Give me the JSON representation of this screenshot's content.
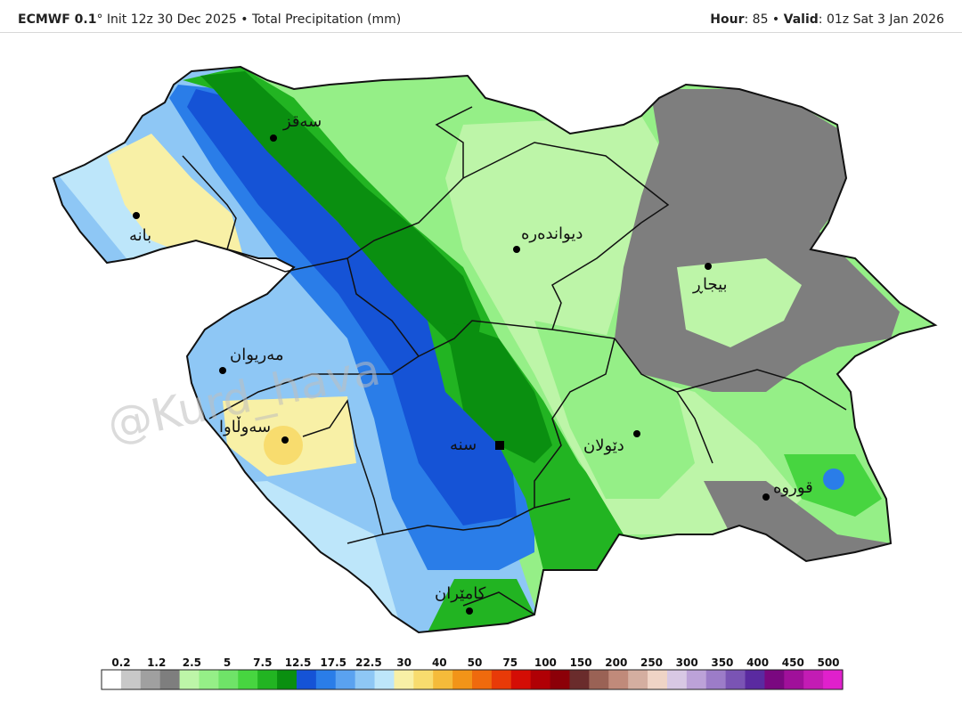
{
  "header": {
    "model": "ECMWF 0.1",
    "deg": "°",
    "init": " Init 12z 30 Dec 2025",
    "sep": " • ",
    "product": "Total Precipitation (mm)",
    "hour_label": "Hour",
    "hour_value": ": 85",
    "valid_label": "Valid",
    "valid_value": ": 01z Sat 3 Jan 2026"
  },
  "watermark": "@Kurd_hava",
  "cities": [
    {
      "name": "سەقز"
    },
    {
      "name": "بانە"
    },
    {
      "name": "دیواندەرە"
    },
    {
      "name": "بیجاڕ"
    },
    {
      "name": "مەریوان"
    },
    {
      "name": "سەوڵاوا"
    },
    {
      "name": "سنە"
    },
    {
      "name": "دێولان"
    },
    {
      "name": "قوروە"
    },
    {
      "name": "کامێران"
    }
  ],
  "legend": {
    "ticks": [
      "0.2",
      "1.2",
      "2.5",
      "5",
      "7.5",
      "12.5",
      "17.5",
      "22.5",
      "30",
      "40",
      "50",
      "75",
      "100",
      "150",
      "200",
      "250",
      "300",
      "350",
      "400",
      "450",
      "500"
    ],
    "colors": [
      "#ffffff",
      "#c8c8c8",
      "#a0a0a0",
      "#7e7e7e",
      "#bdf5a8",
      "#95ef87",
      "#6fe368",
      "#47d540",
      "#22b422",
      "#0a8f10",
      "#1553d6",
      "#2a7de8",
      "#5aa2f0",
      "#8ec7f5",
      "#bde6fa",
      "#f8f0a6",
      "#f8dc6e",
      "#f5bb3a",
      "#f29418",
      "#ef6a0d",
      "#e83a08",
      "#d40d05",
      "#b00005",
      "#8c0008",
      "#6a2c2c",
      "#9a6255",
      "#c08a7a",
      "#d4aea0",
      "#efd4c6",
      "#d8c8e4",
      "#bca2d8",
      "#9c7cc8",
      "#7a54b4",
      "#5a2aa0",
      "#7a0880",
      "#a0109a",
      "#c31cb4",
      "#e020cc"
    ]
  }
}
